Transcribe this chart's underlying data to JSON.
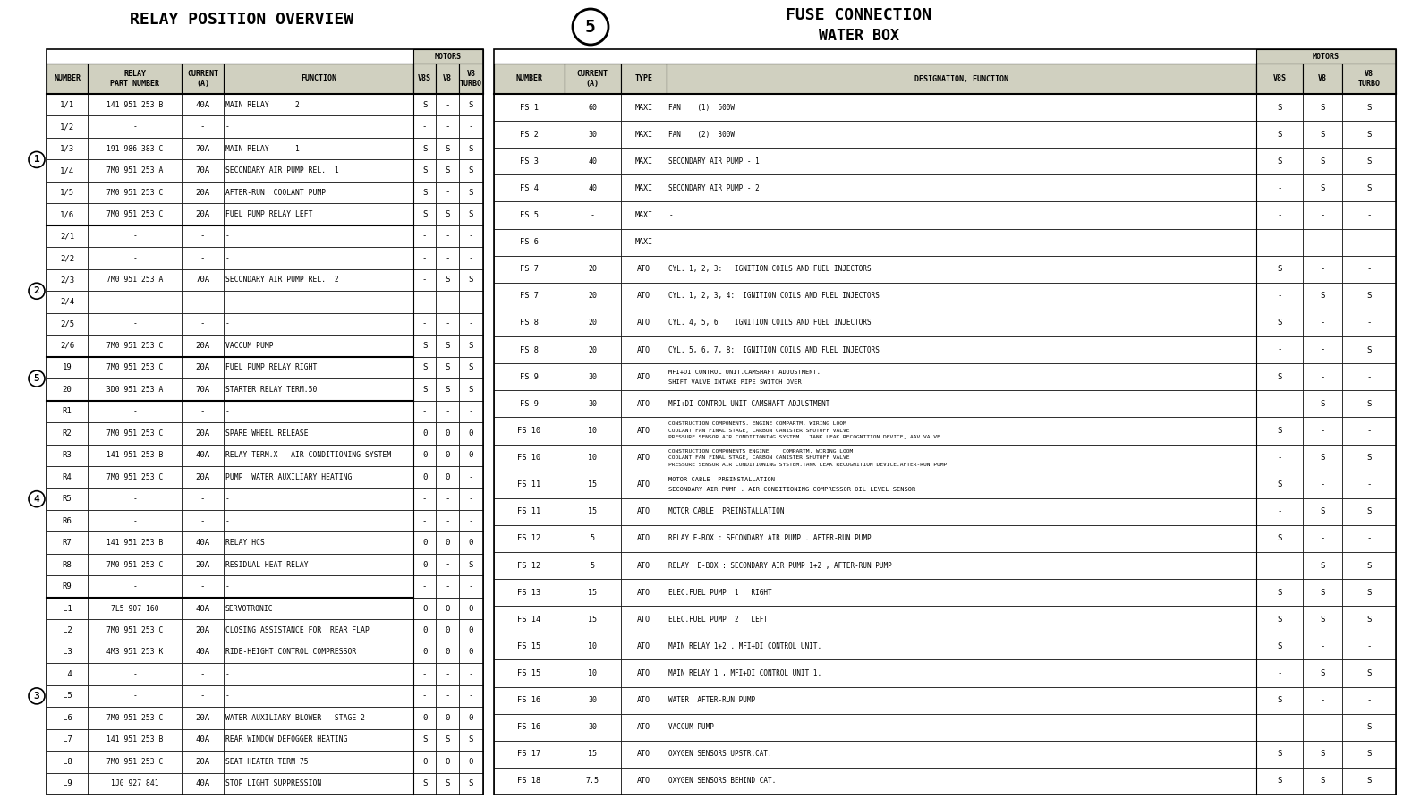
{
  "bg_color": "#ffffff",
  "line_color": "#000000",
  "header_bg": "#d0d0c0",
  "title1": "RELAY POSITION OVERVIEW",
  "title2": "FUSE CONNECTION",
  "title2b": "WATER BOX",
  "left_table": {
    "rows": [
      [
        "1/1",
        "141 951 253 B",
        "40A",
        "MAIN RELAY      2",
        "S",
        "-",
        "S"
      ],
      [
        "1/2",
        "-",
        "-",
        "-",
        "-",
        "-",
        "-"
      ],
      [
        "1/3",
        "191 986 383 C",
        "70A",
        "MAIN RELAY      1",
        "S",
        "S",
        "S"
      ],
      [
        "1/4",
        "7M0 951 253 A",
        "70A",
        "SECONDARY AIR PUMP REL.  1",
        "S",
        "S",
        "S"
      ],
      [
        "1/5",
        "7M0 951 253 C",
        "20A",
        "AFTER-RUN  COOLANT PUMP",
        "S",
        "-",
        "S"
      ],
      [
        "1/6",
        "7M0 951 253 C",
        "20A",
        "FUEL PUMP RELAY LEFT",
        "S",
        "S",
        "S"
      ],
      [
        "2/1",
        "-",
        "-",
        "-",
        "-",
        "-",
        "-"
      ],
      [
        "2/2",
        "-",
        "-",
        "-",
        "-",
        "-",
        "-"
      ],
      [
        "2/3",
        "7M0 951 253 A",
        "70A",
        "SECONDARY AIR PUMP REL.  2",
        "-",
        "S",
        "S"
      ],
      [
        "2/4",
        "-",
        "-",
        "-",
        "-",
        "-",
        "-"
      ],
      [
        "2/5",
        "-",
        "-",
        "-",
        "-",
        "-",
        "-"
      ],
      [
        "2/6",
        "7M0 951 253 C",
        "20A",
        "VACCUM PUMP",
        "S",
        "S",
        "S"
      ],
      [
        "19",
        "7M0 951 253 C",
        "20A",
        "FUEL PUMP RELAY RIGHT",
        "S",
        "S",
        "S"
      ],
      [
        "20",
        "3D0 951 253 A",
        "70A",
        "STARTER RELAY TERM.50",
        "S",
        "S",
        "S"
      ],
      [
        "R1",
        "-",
        "-",
        "-",
        "-",
        "-",
        "-"
      ],
      [
        "R2",
        "7M0 951 253 C",
        "20A",
        "SPARE WHEEL RELEASE",
        "0",
        "0",
        "0"
      ],
      [
        "R3",
        "141 951 253 B",
        "40A",
        "RELAY TERM.X - AIR CONDITIONING SYSTEM",
        "0",
        "0",
        "0"
      ],
      [
        "R4",
        "7M0 951 253 C",
        "20A",
        "PUMP  WATER AUXILIARY HEATING",
        "0",
        "0",
        "-"
      ],
      [
        "R5",
        "-",
        "-",
        "-",
        "-",
        "-",
        "-"
      ],
      [
        "R6",
        "-",
        "-",
        "-",
        "-",
        "-",
        "-"
      ],
      [
        "R7",
        "141 951 253 B",
        "40A",
        "RELAY HCS",
        "0",
        "0",
        "0"
      ],
      [
        "R8",
        "7M0 951 253 C",
        "20A",
        "RESIDUAL HEAT RELAY",
        "0",
        "-",
        "S"
      ],
      [
        "R9",
        "-",
        "-",
        "-",
        "-",
        "-",
        "-"
      ],
      [
        "L1",
        "7L5 907 160",
        "40A",
        "SERVOTRONIC",
        "0",
        "0",
        "0"
      ],
      [
        "L2",
        "7M0 951 253 C",
        "20A",
        "CLOSING ASSISTANCE FOR  REAR FLAP",
        "0",
        "0",
        "0"
      ],
      [
        "L3",
        "4M3 951 253 K",
        "40A",
        "RIDE-HEIGHT CONTROL COMPRESSOR",
        "0",
        "0",
        "0"
      ],
      [
        "L4",
        "-",
        "-",
        "-",
        "-",
        "-",
        "-"
      ],
      [
        "L5",
        "-",
        "-",
        "-",
        "-",
        "-",
        "-"
      ],
      [
        "L6",
        "7M0 951 253 C",
        "20A",
        "WATER AUXILIARY BLOWER - STAGE 2",
        "0",
        "0",
        "0"
      ],
      [
        "L7",
        "141 951 253 B",
        "40A",
        "REAR WINDOW DEFOGGER HEATING",
        "S",
        "S",
        "S"
      ],
      [
        "L8",
        "7M0 951 253 C",
        "20A",
        "SEAT HEATER TERM 75",
        "0",
        "0",
        "0"
      ],
      [
        "L9",
        "1J0 927 841",
        "40A",
        "STOP LIGHT SUPPRESSION",
        "S",
        "S",
        "S"
      ]
    ],
    "groups": [
      {
        "label": "1",
        "start": 0,
        "end": 5
      },
      {
        "label": "2",
        "start": 6,
        "end": 11
      },
      {
        "label": "5",
        "start": 12,
        "end": 13
      },
      {
        "label": "4",
        "start": 14,
        "end": 22
      },
      {
        "label": "3",
        "start": 23,
        "end": 31
      }
    ]
  },
  "right_table": {
    "rows": [
      [
        "FS 1",
        "60",
        "MAXI",
        "FAN    (1)  600W",
        "S",
        "S",
        "S"
      ],
      [
        "FS 2",
        "30",
        "MAXI",
        "FAN    (2)  300W",
        "S",
        "S",
        "S"
      ],
      [
        "FS 3",
        "40",
        "MAXI",
        "SECONDARY AIR PUMP - 1",
        "S",
        "S",
        "S"
      ],
      [
        "FS 4",
        "40",
        "MAXI",
        "SECONDARY AIR PUMP - 2",
        "-",
        "S",
        "S"
      ],
      [
        "FS 5",
        "-",
        "MAXI",
        "-",
        "-",
        "-",
        "-"
      ],
      [
        "FS 6",
        "-",
        "MAXI",
        "-",
        "-",
        "-",
        "-"
      ],
      [
        "FS 7",
        "20",
        "ATO",
        "CYL. 1, 2, 3:   IGNITION COILS AND FUEL INJECTORS",
        "S",
        "-",
        "-"
      ],
      [
        "FS 7",
        "20",
        "ATO",
        "CYL. 1, 2, 3, 4:  IGNITION COILS AND FUEL INJECTORS",
        "-",
        "S",
        "S"
      ],
      [
        "FS 8",
        "20",
        "ATO",
        "CYL. 4, 5, 6    IGNITION COILS AND FUEL INJECTORS",
        "S",
        "-",
        "-"
      ],
      [
        "FS 8",
        "20",
        "ATO",
        "CYL. 5, 6, 7, 8:  IGNITION COILS AND FUEL INJECTORS",
        "-",
        "-",
        "S"
      ],
      [
        "FS 9",
        "30",
        "ATO",
        "MFI+DI CONTROL UNIT.CAMSHAFT ADJUSTMENT.\nSHIFT VALVE INTAKE PIPE SWITCH OVER",
        "S",
        "-",
        "-"
      ],
      [
        "FS 9",
        "30",
        "ATO",
        "MFI+DI CONTROL UNIT CAMSHAFT ADJUSTMENT",
        "-",
        "S",
        "S"
      ],
      [
        "FS 10",
        "10",
        "ATO",
        "CONSTRUCTION COMPONENTS. ENGINE COMPARTM. WIRING LOOM\nCOOLANT FAN FINAL STAGE, CARBON CANISTER SHUTOFF VALVE\nPRESSURE SENSOR AIR CONDITIONING SYSTEM . TANK LEAK RECOGNITION DEVICE, AAV VALVE",
        "S",
        "-",
        "-"
      ],
      [
        "FS 10",
        "10",
        "ATO",
        "CONSTRUCTION COMPONENTS ENGINE    COMPARTM. WIRING LOOM\nCOOLANT FAN FINAL STAGE, CARBON CANISTER SHUTOFF VALVE\nPRESSURE SENSOR AIR CONDITIONING SYSTEM.TANK LEAK RECOGNITION DEVICE.AFTER-RUN PUMP",
        "-",
        "S",
        "S"
      ],
      [
        "FS 11",
        "15",
        "ATO",
        "MOTOR CABLE  PREINSTALLATION\nSECONDARY AIR PUMP . AIR CONDITIONING COMPRESSOR OIL LEVEL SENSOR",
        "S",
        "-",
        "-"
      ],
      [
        "FS 11",
        "15",
        "ATO",
        "MOTOR CABLE  PREINSTALLATION",
        "-",
        "S",
        "S"
      ],
      [
        "FS 12",
        "5",
        "ATO",
        "RELAY E-BOX : SECONDARY AIR PUMP . AFTER-RUN PUMP",
        "S",
        "-",
        "-"
      ],
      [
        "FS 12",
        "5",
        "ATO",
        "RELAY  E-BOX : SECONDARY AIR PUMP 1+2 , AFTER-RUN PUMP",
        "-",
        "S",
        "S"
      ],
      [
        "FS 13",
        "15",
        "ATO",
        "ELEC.FUEL PUMP  1   RIGHT",
        "S",
        "S",
        "S"
      ],
      [
        "FS 14",
        "15",
        "ATO",
        "ELEC.FUEL PUMP  2   LEFT",
        "S",
        "S",
        "S"
      ],
      [
        "FS 15",
        "10",
        "ATO",
        "MAIN RELAY 1+2 . MFI+DI CONTROL UNIT.",
        "S",
        "-",
        "-"
      ],
      [
        "FS 15",
        "10",
        "ATO",
        "MAIN RELAY 1 , MFI+DI CONTROL UNIT 1.",
        "-",
        "S",
        "S"
      ],
      [
        "FS 16",
        "30",
        "ATO",
        "WATER  AFTER-RUN PUMP",
        "S",
        "-",
        "-"
      ],
      [
        "FS 16",
        "30",
        "ATO",
        "VACCUM PUMP",
        "-",
        "-",
        "S"
      ],
      [
        "FS 17",
        "15",
        "ATO",
        "OXYGEN SENSORS UPSTR.CAT.",
        "S",
        "S",
        "S"
      ],
      [
        "FS 18",
        "7.5",
        "ATO",
        "OXYGEN SENSORS BEHIND CAT.",
        "S",
        "S",
        "S"
      ]
    ]
  }
}
